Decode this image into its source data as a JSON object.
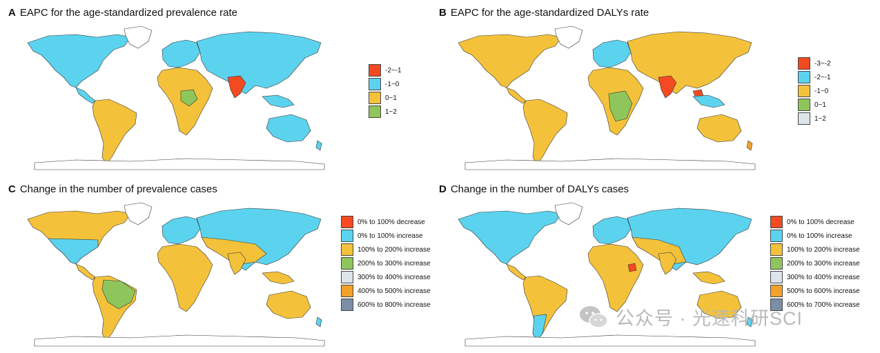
{
  "panels": [
    {
      "letter": "A",
      "title": "EAPC for the age-standardized prevalence rate",
      "legend": [
        {
          "label": "-2~-1",
          "color": "#f34a22"
        },
        {
          "label": "-1~0",
          "color": "#5bd3ef"
        },
        {
          "label": "0~1",
          "color": "#f4c23a"
        },
        {
          "label": "1~2",
          "color": "#8ec65b"
        }
      ]
    },
    {
      "letter": "B",
      "title": "EAPC for the age-standardized DALYs rate",
      "legend": [
        {
          "label": "-3~-2",
          "color": "#f34a22"
        },
        {
          "label": "-2~-1",
          "color": "#5bd3ef"
        },
        {
          "label": "-1~0",
          "color": "#f4c23a"
        },
        {
          "label": "0~1",
          "color": "#8ec65b"
        },
        {
          "label": "1~2",
          "color": "#dde5ea"
        }
      ]
    },
    {
      "letter": "C",
      "title": "Change in the number of prevalence cases",
      "legend": [
        {
          "label": "0% to 100% decrease",
          "color": "#f34a22"
        },
        {
          "label": "0% to 100% increase",
          "color": "#5bd3ef"
        },
        {
          "label": "100% to 200% increase",
          "color": "#f4c23a"
        },
        {
          "label": "200% to 300% increase",
          "color": "#8ec65b"
        },
        {
          "label": "300% to 400% increase",
          "color": "#dde5ea"
        },
        {
          "label": "400% to 500% increase",
          "color": "#f3a12a"
        },
        {
          "label": "600% to 800% increase",
          "color": "#7a8ea6"
        }
      ]
    },
    {
      "letter": "D",
      "title": "Change in the number of DALYs cases",
      "legend": [
        {
          "label": "0% to 100% decrease",
          "color": "#f34a22"
        },
        {
          "label": "0% to 100% increase",
          "color": "#5bd3ef"
        },
        {
          "label": "100% to 200% increase",
          "color": "#f4c23a"
        },
        {
          "label": "200% to 300% increase",
          "color": "#8ec65b"
        },
        {
          "label": "300% to 400% increase",
          "color": "#dde5ea"
        },
        {
          "label": "500% to 600% increase",
          "color": "#f3a12a"
        },
        {
          "label": "600% to 700% increase",
          "color": "#7a8ea6"
        }
      ]
    }
  ],
  "watermark": {
    "text": "公众号 · 光速科研SCI",
    "icon": "wechat-icon"
  },
  "colors": {
    "red": "#f34a22",
    "blue": "#5bd3ef",
    "yellow": "#f4c23a",
    "green": "#8ec65b",
    "grey": "#dde5ea",
    "orange": "#f3a12a",
    "slate": "#7a8ea6"
  }
}
